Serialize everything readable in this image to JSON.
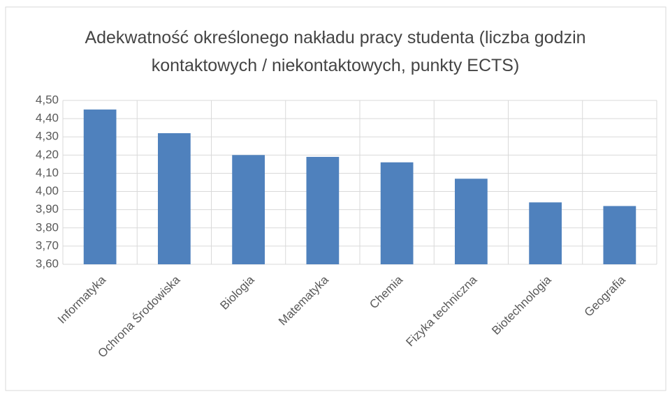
{
  "chart_data": {
    "type": "bar",
    "title": "Adekwatność określonego nakładu pracy studenta (liczba godzin kontaktowych / niekontaktowych, punkty ECTS)",
    "categories": [
      "Informatyka",
      "Ochrona Środowiska",
      "Biologia",
      "Matematyka",
      "Chemia",
      "Fizyka techniczna",
      "Biotechnologia",
      "Geografia"
    ],
    "values": [
      4.45,
      4.32,
      4.2,
      4.19,
      4.16,
      4.07,
      3.94,
      3.92
    ],
    "color": "#4f81bd",
    "ylim": [
      3.6,
      4.5
    ],
    "yticks": [
      {
        "value": 3.6,
        "label": "3,60"
      },
      {
        "value": 3.7,
        "label": "3,70"
      },
      {
        "value": 3.8,
        "label": "3,80"
      },
      {
        "value": 3.9,
        "label": "3,90"
      },
      {
        "value": 4.0,
        "label": "4,00"
      },
      {
        "value": 4.1,
        "label": "4,10"
      },
      {
        "value": 4.2,
        "label": "4,20"
      },
      {
        "value": 4.3,
        "label": "4,30"
      },
      {
        "value": 4.4,
        "label": "4,40"
      },
      {
        "value": 4.5,
        "label": "4,50"
      }
    ],
    "grid": true
  }
}
